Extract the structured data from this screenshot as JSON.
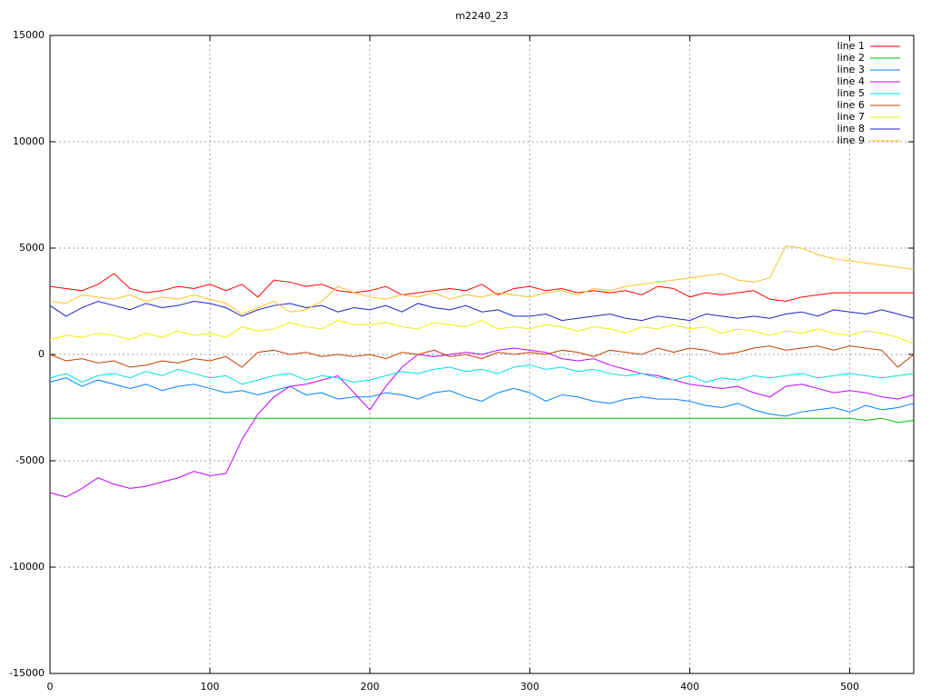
{
  "chart_data": {
    "type": "line",
    "title": "m2240_23",
    "x": [
      0,
      10,
      20,
      30,
      40,
      50,
      60,
      70,
      80,
      90,
      100,
      110,
      120,
      130,
      140,
      150,
      160,
      170,
      180,
      190,
      200,
      210,
      220,
      230,
      240,
      250,
      260,
      270,
      280,
      290,
      300,
      310,
      320,
      330,
      340,
      350,
      360,
      370,
      380,
      390,
      400,
      410,
      420,
      430,
      440,
      450,
      460,
      470,
      480,
      490,
      500,
      510,
      520,
      530,
      540
    ],
    "xlim": [
      0,
      540
    ],
    "xticks": [
      0,
      100,
      200,
      300,
      400,
      500
    ],
    "ylim": [
      -15000,
      15000
    ],
    "yticks": [
      -15000,
      -10000,
      -5000,
      0,
      5000,
      10000,
      15000
    ],
    "grid": true,
    "legend": "top-right",
    "series": [
      {
        "name": "line 1",
        "color": "#ff0000",
        "values": [
          3200,
          3100,
          3000,
          3300,
          3800,
          3100,
          2900,
          3000,
          3200,
          3100,
          3300,
          3000,
          3300,
          2700,
          3500,
          3400,
          3200,
          3300,
          3000,
          2900,
          3000,
          3200,
          2800,
          2900,
          3000,
          3100,
          3000,
          3300,
          2800,
          3100,
          3200,
          3000,
          3100,
          2900,
          3000,
          2900,
          3000,
          2800,
          3200,
          3100,
          2700,
          2900,
          2800,
          2900,
          3000,
          2600,
          2500,
          2700,
          2800,
          2900,
          2900,
          2900,
          2900,
          2900,
          2900
        ]
      },
      {
        "name": "line 2",
        "color": "#00c000",
        "values": [
          -3000,
          -3000,
          -3000,
          -3000,
          -3000,
          -3000,
          -3000,
          -3000,
          -3000,
          -3000,
          -3000,
          -3000,
          -3000,
          -3000,
          -3000,
          -3000,
          -3000,
          -3000,
          -3000,
          -3000,
          -3000,
          -3000,
          -3000,
          -3000,
          -3000,
          -3000,
          -3000,
          -3000,
          -3000,
          -3000,
          -3000,
          -3000,
          -3000,
          -3000,
          -3000,
          -3000,
          -3000,
          -3000,
          -3000,
          -3000,
          -3000,
          -3000,
          -3000,
          -3000,
          -3000,
          -3000,
          -3000,
          -3000,
          -3000,
          -3000,
          -3000,
          -3100,
          -3000,
          -3200,
          -3100
        ]
      },
      {
        "name": "line 3",
        "color": "#0080ff",
        "values": [
          -1300,
          -1100,
          -1500,
          -1200,
          -1400,
          -1600,
          -1400,
          -1700,
          -1500,
          -1400,
          -1600,
          -1800,
          -1700,
          -1900,
          -1700,
          -1500,
          -1900,
          -1800,
          -2100,
          -2000,
          -2000,
          -1800,
          -1900,
          -2100,
          -1800,
          -1700,
          -2000,
          -2200,
          -1800,
          -1600,
          -1800,
          -2200,
          -1900,
          -2000,
          -2200,
          -2300,
          -2100,
          -2000,
          -2100,
          -2100,
          -2200,
          -2400,
          -2500,
          -2300,
          -2600,
          -2800,
          -2900,
          -2700,
          -2600,
          -2500,
          -2700,
          -2400,
          -2600,
          -2500,
          -2300
        ]
      },
      {
        "name": "line 4",
        "color": "#c000ff",
        "values": [
          -6500,
          -6700,
          -6300,
          -5800,
          -6100,
          -6300,
          -6200,
          -6000,
          -5800,
          -5500,
          -5700,
          -5600,
          -4000,
          -2800,
          -2000,
          -1500,
          -1400,
          -1200,
          -1000,
          -1800,
          -2600,
          -1500,
          -600,
          0,
          -100,
          0,
          100,
          0,
          200,
          300,
          200,
          100,
          -200,
          -300,
          -200,
          -500,
          -700,
          -900,
          -1000,
          -1200,
          -1400,
          -1500,
          -1600,
          -1500,
          -1800,
          -2000,
          -1500,
          -1400,
          -1600,
          -1800,
          -1700,
          -1800,
          -2000,
          -2100,
          -1900
        ]
      },
      {
        "name": "line 5",
        "color": "#00dddd",
        "values": [
          -1100,
          -900,
          -1300,
          -1000,
          -900,
          -1100,
          -800,
          -1000,
          -700,
          -900,
          -1100,
          -1000,
          -1400,
          -1200,
          -1000,
          -900,
          -1200,
          -1000,
          -1100,
          -1300,
          -1200,
          -1000,
          -800,
          -900,
          -700,
          -600,
          -800,
          -700,
          -900,
          -600,
          -500,
          -700,
          -600,
          -800,
          -700,
          -900,
          -1000,
          -900,
          -1100,
          -1200,
          -1000,
          -1300,
          -1100,
          -1200,
          -1000,
          -1100,
          -1000,
          -900,
          -1100,
          -1000,
          -900,
          -1000,
          -1100,
          -1000,
          -900
        ]
      },
      {
        "name": "line 6",
        "color": "#c04000",
        "values": [
          0,
          -300,
          -200,
          -400,
          -300,
          -600,
          -500,
          -300,
          -400,
          -200,
          -300,
          -100,
          -600,
          100,
          200,
          0,
          100,
          -100,
          0,
          -100,
          0,
          -200,
          100,
          0,
          200,
          -100,
          0,
          -200,
          100,
          0,
          100,
          0,
          200,
          100,
          -100,
          200,
          100,
          0,
          300,
          100,
          300,
          200,
          0,
          100,
          300,
          400,
          200,
          300,
          400,
          200,
          400,
          300,
          200,
          -600,
          0
        ]
      },
      {
        "name": "line 7",
        "color": "#eeee00",
        "values": [
          700,
          900,
          800,
          1000,
          900,
          700,
          1000,
          800,
          1100,
          900,
          1000,
          800,
          1300,
          1100,
          1200,
          1500,
          1300,
          1200,
          1600,
          1400,
          1400,
          1500,
          1300,
          1200,
          1500,
          1400,
          1300,
          1600,
          1200,
          1300,
          1200,
          1400,
          1300,
          1100,
          1300,
          1200,
          1000,
          1300,
          1200,
          1400,
          1200,
          1300,
          1000,
          1200,
          1100,
          900,
          1100,
          1000,
          1200,
          1000,
          900,
          1100,
          1000,
          800,
          500
        ]
      },
      {
        "name": "line 8",
        "color": "#2020c0",
        "values": [
          2300,
          1800,
          2200,
          2500,
          2300,
          2100,
          2400,
          2200,
          2300,
          2500,
          2400,
          2200,
          1800,
          2100,
          2300,
          2400,
          2200,
          2300,
          2000,
          2200,
          2100,
          2300,
          2000,
          2400,
          2200,
          2100,
          2300,
          2000,
          2100,
          1800,
          1800,
          1900,
          1600,
          1700,
          1800,
          1900,
          1700,
          1600,
          1800,
          1700,
          1600,
          1900,
          1800,
          1700,
          1800,
          1700,
          1900,
          2000,
          1800,
          2100,
          2000,
          1900,
          2100,
          1900,
          1700
        ]
      },
      {
        "name": "line 9",
        "color": "#ffc020",
        "values": [
          2500,
          2400,
          2800,
          2700,
          2600,
          2800,
          2500,
          2700,
          2600,
          2800,
          2600,
          2400,
          1900,
          2200,
          2500,
          2000,
          2100,
          2500,
          3200,
          2900,
          2700,
          2600,
          2800,
          2700,
          2900,
          2600,
          2800,
          2700,
          2900,
          2800,
          2700,
          2900,
          3000,
          2800,
          3100,
          3000,
          3200,
          3300,
          3400,
          3500,
          3600,
          3700,
          3800,
          3500,
          3400,
          3600,
          5100,
          5000,
          4700,
          4500,
          4400,
          4300,
          4200,
          4100,
          4000
        ]
      }
    ]
  }
}
